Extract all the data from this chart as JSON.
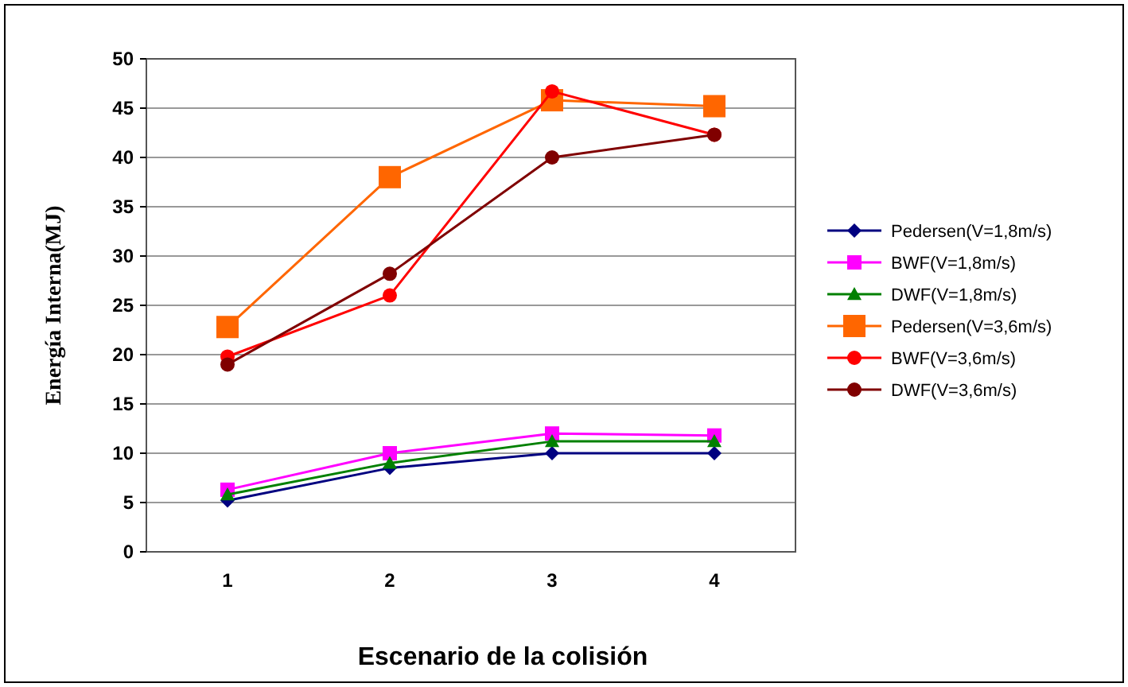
{
  "chart_data": {
    "type": "line",
    "xlabel": "Escenario de la colisión",
    "ylabel": "Energía Interna(MJ)",
    "categories": [
      "1",
      "2",
      "3",
      "4"
    ],
    "ylim": [
      0,
      50
    ],
    "yticks": [
      0,
      5,
      10,
      15,
      20,
      25,
      30,
      35,
      40,
      45,
      50
    ],
    "grid": "y",
    "legend": "right",
    "series": [
      {
        "name": "Pedersen(V=1,8m/s)",
        "color": "#000080",
        "marker": "diamond",
        "values": [
          5.2,
          8.5,
          10,
          10
        ]
      },
      {
        "name": "BWF(V=1,8m/s)",
        "color": "#ff00ff",
        "marker": "square",
        "values": [
          6.3,
          10,
          12,
          11.8
        ]
      },
      {
        "name": "DWF(V=1,8m/s)",
        "color": "#008000",
        "marker": "triangle",
        "values": [
          5.8,
          9,
          11.2,
          11.2
        ]
      },
      {
        "name": "Pedersen(V=3,6m/s)",
        "color": "#ff6600",
        "marker": "square",
        "values": [
          22.8,
          38,
          45.8,
          45.2
        ]
      },
      {
        "name": "BWF(V=3,6m/s)",
        "color": "#ff0000",
        "marker": "circle",
        "values": [
          19.8,
          26,
          46.7,
          42.3
        ]
      },
      {
        "name": "DWF(V=3,6m/s)",
        "color": "#800000",
        "marker": "circle",
        "values": [
          19,
          28.2,
          40,
          42.3
        ]
      }
    ]
  }
}
